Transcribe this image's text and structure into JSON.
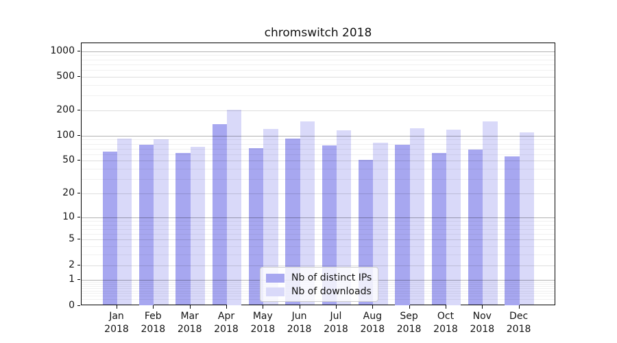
{
  "title": "chromswitch 2018",
  "chart_data": {
    "type": "bar",
    "title": "chromswitch 2018",
    "categories": [
      "Jan",
      "Feb",
      "Mar",
      "Apr",
      "May",
      "Jun",
      "Jul",
      "Aug",
      "Sep",
      "Oct",
      "Nov",
      "Dec"
    ],
    "category_year": "2018",
    "series": [
      {
        "name": "Nb of distinct IPs",
        "color": "#a7a7f0",
        "values": [
          65,
          78,
          62,
          136,
          71,
          92,
          77,
          51,
          78,
          62,
          68,
          57
        ]
      },
      {
        "name": "Nb of downloads",
        "color": "#d9d9f9",
        "values": [
          92,
          90,
          74,
          205,
          121,
          148,
          116,
          83,
          122,
          118,
          148,
          109
        ]
      }
    ],
    "xlabel": "",
    "ylabel": "",
    "y_axis": {
      "scale": "log1p",
      "tick_values": [
        0,
        1,
        2,
        5,
        10,
        20,
        50,
        100,
        200,
        500,
        1000
      ],
      "tick_labels": [
        "0",
        "1",
        "2",
        "5",
        "10",
        "20",
        "50",
        "100",
        "200",
        "500",
        "1000"
      ],
      "minor_grid_values": [
        0.2,
        0.3,
        0.4,
        0.5,
        0.6,
        0.7,
        0.8,
        0.9,
        3,
        4,
        6,
        7,
        8,
        9,
        30,
        40,
        60,
        70,
        80,
        90,
        300,
        400,
        600,
        700,
        800,
        900
      ]
    },
    "grid": true,
    "legend_position": "lower center"
  },
  "legend": {
    "items": [
      {
        "label": "Nb of distinct IPs"
      },
      {
        "label": "Nb of downloads"
      }
    ]
  }
}
